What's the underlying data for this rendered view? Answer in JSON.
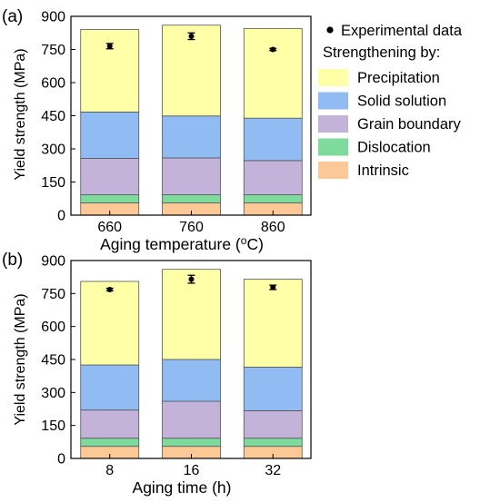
{
  "chart_data": [
    {
      "type": "bar",
      "panel_label": "(a)",
      "stacked": true,
      "categories": [
        "660",
        "760",
        "860"
      ],
      "xlabel": "Aging temperature (",
      "xlabel_sup": "o",
      "xlabel_tail": "C)",
      "ylabel": "Yield strength (MPa)",
      "ylim": [
        0,
        900
      ],
      "yticks": [
        "0",
        "150",
        "300",
        "450",
        "600",
        "750",
        "900"
      ],
      "series": [
        {
          "name": "Intrinsic",
          "values": [
            55,
            55,
            55
          ],
          "color": "#FCC896"
        },
        {
          "name": "Dislocation",
          "values": [
            37,
            37,
            37
          ],
          "color": "#7DDB9B"
        },
        {
          "name": "Grain boundary",
          "values": [
            165,
            167,
            155
          ],
          "color": "#C3B3DB"
        },
        {
          "name": "Solid solution",
          "values": [
            210,
            190,
            192
          ],
          "color": "#91BBF3"
        },
        {
          "name": "Precipitation",
          "values": [
            373,
            411,
            406
          ],
          "color": "#FFFFA7"
        }
      ],
      "experimental": {
        "name": "Experimental data",
        "values": [
          765,
          810,
          750
        ],
        "errors": [
          12,
          15,
          5
        ]
      }
    },
    {
      "type": "bar",
      "panel_label": "(b)",
      "stacked": true,
      "categories": [
        "8",
        "16",
        "32"
      ],
      "xlabel": "Aging time (h)",
      "ylabel": "Yield strength (MPa)",
      "ylim": [
        0,
        900
      ],
      "yticks": [
        "0",
        "150",
        "300",
        "450",
        "600",
        "750",
        "900"
      ],
      "series": [
        {
          "name": "Intrinsic",
          "values": [
            55,
            55,
            55
          ],
          "color": "#FCC896"
        },
        {
          "name": "Dislocation",
          "values": [
            37,
            37,
            37
          ],
          "color": "#7DDB9B"
        },
        {
          "name": "Grain boundary",
          "values": [
            128,
            168,
            125
          ],
          "color": "#C3B3DB"
        },
        {
          "name": "Solid solution",
          "values": [
            205,
            190,
            198
          ],
          "color": "#91BBF3"
        },
        {
          "name": "Precipitation",
          "values": [
            380,
            410,
            400
          ],
          "color": "#FFFFA7"
        }
      ],
      "experimental": {
        "name": "Experimental data",
        "values": [
          768,
          815,
          778
        ],
        "errors": [
          6,
          18,
          10
        ]
      }
    }
  ],
  "legend": {
    "experimental_label": "Experimental data",
    "heading": "Strengthening by:",
    "items": [
      {
        "label": "Precipitation",
        "color": "#FFFFA7"
      },
      {
        "label": "Solid solution",
        "color": "#91BBF3"
      },
      {
        "label": "Grain boundary",
        "color": "#C3B3DB"
      },
      {
        "label": "Dislocation",
        "color": "#7DDB9B"
      },
      {
        "label": "Intrinsic",
        "color": "#FCC896"
      }
    ]
  }
}
